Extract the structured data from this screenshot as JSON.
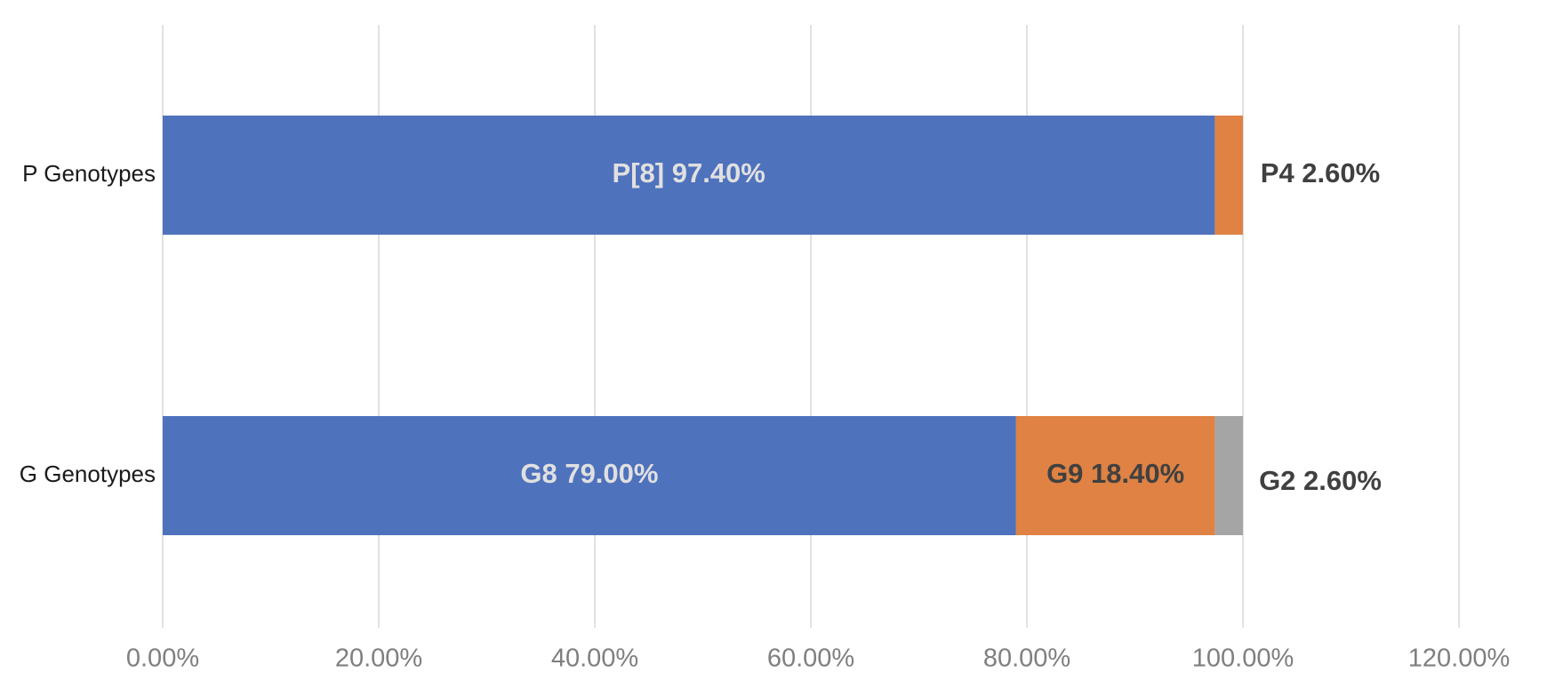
{
  "chart_data": {
    "type": "bar",
    "orientation": "horizontal",
    "stacked": true,
    "categories": [
      "P Genotypes",
      "G Genotypes"
    ],
    "segments": [
      [
        {
          "label": "P[8] 97.40%",
          "value": 97.4,
          "color": "#4f72bd",
          "label_color": "#e0e0e0",
          "label_position": "inside"
        },
        {
          "label": "P4 2.60%",
          "value": 2.6,
          "color": "#df8244",
          "label_color": "#404040",
          "label_position": "outside"
        }
      ],
      [
        {
          "label": "G8 79.00%",
          "value": 79.0,
          "color": "#4f72bd",
          "label_color": "#e0e0e0",
          "label_position": "inside"
        },
        {
          "label": "G9 18.40%",
          "value": 18.4,
          "color": "#df8244",
          "label_color": "#404040",
          "label_position": "inside"
        },
        {
          "label": "G2 2.60%",
          "value": 2.6,
          "color": "#a5a5a5",
          "label_color": "#404040",
          "label_position": "outside"
        }
      ]
    ],
    "x_ticks": [
      "0.00%",
      "20.00%",
      "40.00%",
      "60.00%",
      "80.00%",
      "100.00%",
      "120.00%"
    ],
    "xlim": [
      0,
      120
    ],
    "grid": true,
    "legend": false,
    "colors": {
      "gridline": "#d9d9d9",
      "tick_label": "#7f7f7f",
      "category_label": "#1a1a1a"
    }
  }
}
